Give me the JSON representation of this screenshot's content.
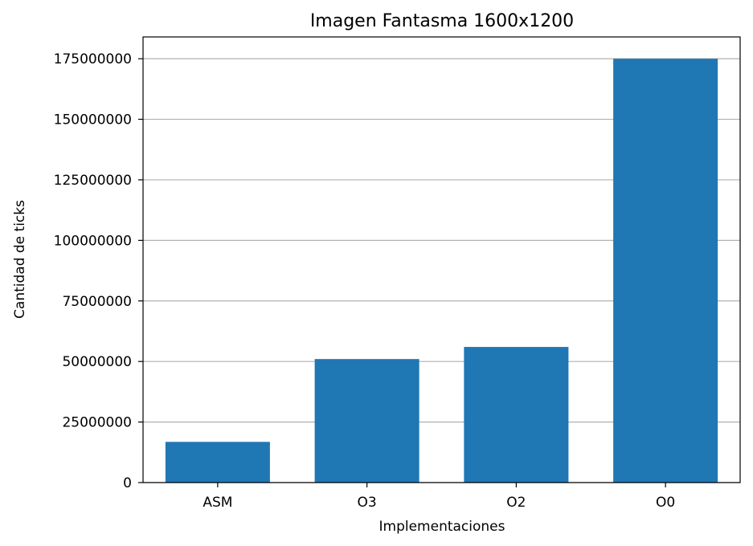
{
  "chart_data": {
    "type": "bar",
    "title": "Imagen Fantasma 1600x1200",
    "xlabel": "Implementaciones",
    "ylabel": "Cantidad de ticks",
    "categories": [
      "ASM",
      "O3",
      "O2",
      "O0"
    ],
    "values": [
      16800000,
      51000000,
      56000000,
      175000000
    ],
    "ylim": [
      0,
      184000000
    ],
    "yticks": [
      0,
      25000000,
      50000000,
      75000000,
      100000000,
      125000000,
      150000000,
      175000000
    ],
    "ytick_labels": [
      "0",
      "25000000",
      "50000000",
      "75000000",
      "100000000",
      "125000000",
      "150000000",
      "175000000"
    ],
    "grid": "horizontal",
    "bar_color": "#1f77b4",
    "grid_color": "#b0b0b0"
  }
}
